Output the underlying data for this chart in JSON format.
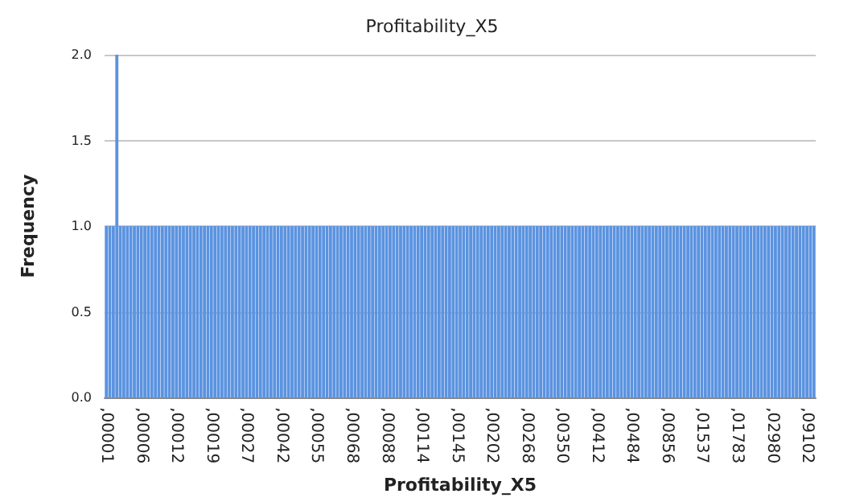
{
  "chart_data": {
    "type": "bar",
    "title": "Profitability_X5",
    "xlabel": "Profitability_X5",
    "ylabel": "Frequency",
    "categories": [
      ",00001",
      null,
      null,
      null,
      null,
      null,
      null,
      null,
      null,
      null,
      ",00006",
      null,
      null,
      null,
      null,
      null,
      null,
      null,
      null,
      null,
      ",00012",
      null,
      null,
      null,
      null,
      null,
      null,
      null,
      null,
      null,
      ",00019",
      null,
      null,
      null,
      null,
      null,
      null,
      null,
      null,
      null,
      ",00027",
      null,
      null,
      null,
      null,
      null,
      null,
      null,
      null,
      null,
      ",00042",
      null,
      null,
      null,
      null,
      null,
      null,
      null,
      null,
      null,
      ",00055",
      null,
      null,
      null,
      null,
      null,
      null,
      null,
      null,
      null,
      ",00068",
      null,
      null,
      null,
      null,
      null,
      null,
      null,
      null,
      null,
      ",00088",
      null,
      null,
      null,
      null,
      null,
      null,
      null,
      null,
      null,
      ",00114",
      null,
      null,
      null,
      null,
      null,
      null,
      null,
      null,
      null,
      ",00145",
      null,
      null,
      null,
      null,
      null,
      null,
      null,
      null,
      null,
      ",00202",
      null,
      null,
      null,
      null,
      null,
      null,
      null,
      null,
      null,
      ",00268",
      null,
      null,
      null,
      null,
      null,
      null,
      null,
      null,
      null,
      ",00350",
      null,
      null,
      null,
      null,
      null,
      null,
      null,
      null,
      null,
      ",00412",
      null,
      null,
      null,
      null,
      null,
      null,
      null,
      null,
      null,
      ",00484",
      null,
      null,
      null,
      null,
      null,
      null,
      null,
      null,
      null,
      ",00856",
      null,
      null,
      null,
      null,
      null,
      null,
      null,
      null,
      null,
      ",01537",
      null,
      null,
      null,
      null,
      null,
      null,
      null,
      null,
      null,
      ",01783",
      null,
      null,
      null,
      null,
      null,
      null,
      null,
      null,
      null,
      ",02980",
      null,
      null,
      null,
      null,
      null,
      null,
      null,
      null,
      null,
      ",09102",
      null,
      null
    ],
    "values": [
      1,
      1,
      1,
      2,
      1,
      1,
      1,
      1,
      1,
      1,
      1,
      1,
      1,
      1,
      1,
      1,
      1,
      1,
      1,
      1,
      1,
      1,
      1,
      1,
      1,
      1,
      1,
      1,
      1,
      1,
      1,
      1,
      1,
      1,
      1,
      1,
      1,
      1,
      1,
      1,
      1,
      1,
      1,
      1,
      1,
      1,
      1,
      1,
      1,
      1,
      1,
      1,
      1,
      1,
      1,
      1,
      1,
      1,
      1,
      1,
      1,
      1,
      1,
      1,
      1,
      1,
      1,
      1,
      1,
      1,
      1,
      1,
      1,
      1,
      1,
      1,
      1,
      1,
      1,
      1,
      1,
      1,
      1,
      1,
      1,
      1,
      1,
      1,
      1,
      1,
      1,
      1,
      1,
      1,
      1,
      1,
      1,
      1,
      1,
      1,
      1,
      1,
      1,
      1,
      1,
      1,
      1,
      1,
      1,
      1,
      1,
      1,
      1,
      1,
      1,
      1,
      1,
      1,
      1,
      1,
      1,
      1,
      1,
      1,
      1,
      1,
      1,
      1,
      1,
      1,
      1,
      1,
      1,
      1,
      1,
      1,
      1,
      1,
      1,
      1,
      1,
      1,
      1,
      1,
      1,
      1,
      1,
      1,
      1,
      1,
      1,
      1,
      1,
      1,
      1,
      1,
      1,
      1,
      1,
      1,
      1,
      1,
      1,
      1,
      1,
      1,
      1,
      1,
      1,
      1,
      1,
      1,
      1,
      1,
      1,
      1,
      1,
      1,
      1,
      1,
      1,
      1,
      1,
      1,
      1,
      1,
      1,
      1,
      1,
      1,
      1,
      1,
      1,
      1,
      1,
      1,
      1,
      1,
      1,
      1,
      1,
      1,
      1
    ],
    "color": "#5b93e0",
    "ylim": [
      0,
      2
    ],
    "yticks": [
      {
        "value": 0,
        "label": "0.0"
      },
      {
        "value": 0.5,
        "label": "0.5"
      },
      {
        "value": 1,
        "label": "1.0"
      },
      {
        "value": 1.5,
        "label": "1.5"
      },
      {
        "value": 2,
        "label": "2.0"
      }
    ],
    "grid": "y"
  }
}
